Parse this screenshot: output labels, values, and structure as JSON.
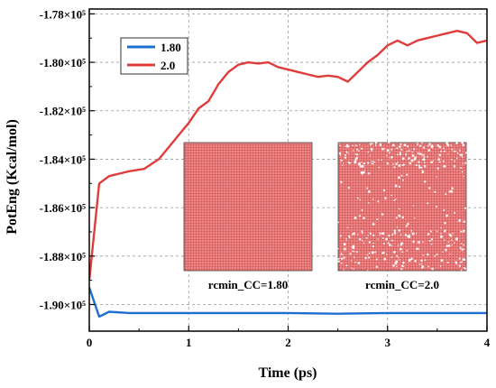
{
  "chart_data": {
    "type": "line",
    "xlabel": "Time (ps)",
    "ylabel": "PotEng (Kcal/mol)",
    "xlim": [
      0,
      4
    ],
    "ylim": [
      -191100,
      -177800
    ],
    "x_ticks": [
      0,
      1,
      2,
      3,
      4
    ],
    "y_ticks": [
      {
        "value": -178000,
        "label": "-1.78×10⁵"
      },
      {
        "value": -180000,
        "label": "-1.80×10⁵"
      },
      {
        "value": -182000,
        "label": "-1.82×10⁵"
      },
      {
        "value": -184000,
        "label": "-1.84×10⁵"
      },
      {
        "value": -186000,
        "label": "-1.86×10⁵"
      },
      {
        "value": -188000,
        "label": "-1.88×10⁵"
      },
      {
        "value": -190000,
        "label": "-1.90×10⁵"
      }
    ],
    "grid": true,
    "legend_position": "top-left",
    "series": [
      {
        "name": "1.80",
        "color": "#1f6fd1",
        "x": [
          0,
          0.1,
          0.2,
          0.4,
          0.6,
          1.0,
          1.5,
          2.0,
          2.5,
          3.0,
          3.5,
          4.0
        ],
        "y": [
          -189300,
          -190500,
          -190300,
          -190350,
          -190350,
          -190350,
          -190350,
          -190350,
          -190380,
          -190350,
          -190350,
          -190350
        ]
      },
      {
        "name": "2.0",
        "color": "#e03c3c",
        "x": [
          0,
          0.1,
          0.2,
          0.3,
          0.4,
          0.55,
          0.7,
          0.8,
          0.9,
          1.0,
          1.1,
          1.2,
          1.3,
          1.4,
          1.5,
          1.6,
          1.7,
          1.8,
          1.9,
          2.0,
          2.1,
          2.2,
          2.3,
          2.4,
          2.5,
          2.6,
          2.7,
          2.8,
          2.9,
          3.0,
          3.1,
          3.2,
          3.3,
          3.4,
          3.5,
          3.6,
          3.7,
          3.8,
          3.9,
          4.0
        ],
        "y": [
          -189000,
          -185000,
          -184700,
          -184600,
          -184500,
          -184400,
          -184000,
          -183500,
          -183000,
          -182500,
          -181900,
          -181600,
          -180900,
          -180400,
          -180100,
          -180000,
          -180050,
          -180000,
          -180200,
          -180300,
          -180400,
          -180500,
          -180600,
          -180550,
          -180600,
          -180800,
          -180400,
          -180000,
          -179700,
          -179300,
          -179100,
          -179300,
          -179100,
          -179000,
          -178900,
          -178800,
          -178700,
          -178800,
          -179200,
          -179100
        ]
      }
    ],
    "insets": [
      {
        "caption": "rcmin_CC=1.80",
        "image": "uniform-red-lattice"
      },
      {
        "caption": "rcmin_CC=2.0",
        "image": "red-lattice-with-white-voids"
      }
    ]
  }
}
